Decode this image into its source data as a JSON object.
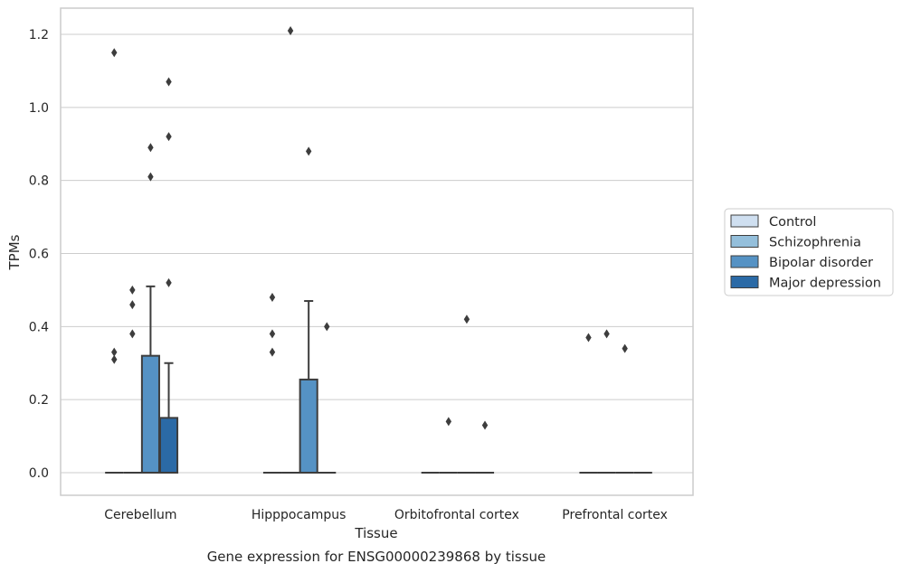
{
  "caption": "Gene expression for ENSG00000239868 by tissue",
  "chart_data": {
    "type": "box",
    "title": "",
    "xlabel": "Tissue",
    "ylabel": "TPMs",
    "ylim": [
      -0.06,
      1.27
    ],
    "yticks": [
      "0.0",
      "0.2",
      "0.4",
      "0.6",
      "0.8",
      "1.0",
      "1.2"
    ],
    "grid": "horizontal",
    "legend_position": "right",
    "categories": [
      "Cerebellum",
      "Hipppocampus",
      "Orbitofrontal cortex",
      "Prefrontal cortex"
    ],
    "series": [
      {
        "name": "Control",
        "color": "#cfdff0",
        "boxes": [
          {
            "q1": 0,
            "median": 0,
            "q3": 0,
            "whisker_low": 0,
            "whisker_high": 0,
            "outliers": []
          },
          {
            "q1": 0,
            "median": 0,
            "q3": 0,
            "whisker_low": 0,
            "whisker_high": 0,
            "outliers": []
          },
          {
            "q1": 0,
            "median": 0,
            "q3": 0,
            "whisker_low": 0,
            "whisker_high": 0,
            "outliers": []
          },
          {
            "q1": 0,
            "median": 0,
            "q3": 0,
            "whisker_low": 0,
            "whisker_high": 0,
            "outliers": [
              0.37
            ]
          }
        ]
      },
      {
        "name": "Schizophrenia",
        "color": "#94bfdb",
        "boxes": [
          {
            "q1": 0,
            "median": 0,
            "q3": 0,
            "whisker_low": 0,
            "whisker_high": 0,
            "outliers": [
              0.5,
              0.46,
              0.38
            ]
          },
          {
            "q1": 0,
            "median": 0,
            "q3": 0,
            "whisker_low": 0,
            "whisker_high": 0,
            "outliers": [
              1.21
            ]
          },
          {
            "q1": 0,
            "median": 0,
            "q3": 0,
            "whisker_low": 0,
            "whisker_high": 0,
            "outliers": [
              0.14
            ]
          },
          {
            "q1": 0,
            "median": 0,
            "q3": 0,
            "whisker_low": 0,
            "whisker_high": 0,
            "outliers": [
              0.38
            ]
          }
        ]
      },
      {
        "name": "Bipolar disorder",
        "color": "#5592c4",
        "boxes": [
          {
            "q1": 0,
            "median": 0,
            "q3": 0.32,
            "whisker_low": 0,
            "whisker_high": 0.51,
            "outliers": [
              0.89,
              0.81
            ]
          },
          {
            "q1": 0,
            "median": 0,
            "q3": 0.255,
            "whisker_low": 0,
            "whisker_high": 0.47,
            "outliers": [
              0.88
            ]
          },
          {
            "q1": 0,
            "median": 0,
            "q3": 0,
            "whisker_low": 0,
            "whisker_high": 0,
            "outliers": [
              0.42
            ]
          },
          {
            "q1": 0,
            "median": 0,
            "q3": 0,
            "whisker_low": 0,
            "whisker_high": 0,
            "outliers": [
              0.34
            ]
          }
        ]
      },
      {
        "name": "Major depression",
        "color": "#2b6aa6",
        "boxes": [
          {
            "q1": 0,
            "median": 0,
            "q3": 0.15,
            "whisker_low": 0,
            "whisker_high": 0.3,
            "outliers": [
              1.07,
              0.92,
              0.52
            ]
          },
          {
            "q1": 0,
            "median": 0,
            "q3": 0,
            "whisker_low": 0,
            "whisker_high": 0,
            "outliers": [
              0.4
            ]
          },
          {
            "q1": 0,
            "median": 0,
            "q3": 0,
            "whisker_low": 0,
            "whisker_high": 0,
            "outliers": [
              0.13
            ]
          },
          {
            "q1": 0,
            "median": 0,
            "q3": 0,
            "whisker_low": 0,
            "whisker_high": 0,
            "outliers": []
          }
        ]
      }
    ],
    "extra_outliers": [
      {
        "category": "Cerebellum",
        "x_offset_series": 0.5,
        "values": [
          1.15,
          0.33,
          0.31
        ]
      },
      {
        "category": "Hipppocampus",
        "x_offset_series": 0.5,
        "values": [
          0.48,
          0.38,
          0.33
        ]
      }
    ]
  }
}
